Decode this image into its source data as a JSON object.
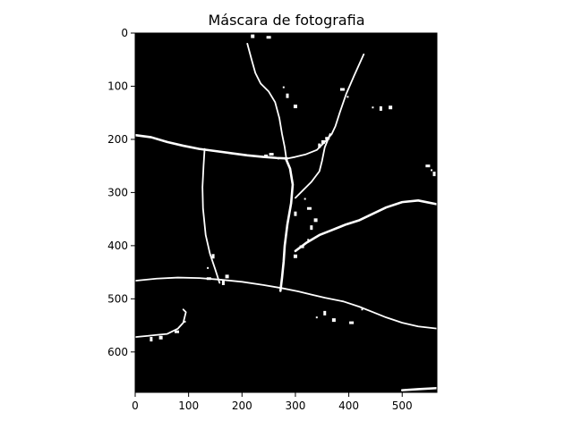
{
  "chart_data": {
    "type": "image",
    "title": "Máscara de fotografia",
    "xlabel": "",
    "ylabel": "",
    "xlim": [
      0,
      565
    ],
    "ylim": [
      676,
      0
    ],
    "xticks": [
      0,
      100,
      200,
      300,
      400,
      500
    ],
    "yticks": [
      0,
      100,
      200,
      300,
      400,
      500,
      600
    ],
    "grid": false,
    "legend": "none",
    "colormap": "gray",
    "background_color": "#000000",
    "foreground_color": "#ffffff",
    "white_features": [
      {
        "name": "crack-left-horizontal",
        "points": [
          [
            0,
            192
          ],
          [
            30,
            196
          ],
          [
            60,
            205
          ],
          [
            90,
            212
          ],
          [
            120,
            218
          ],
          [
            150,
            222
          ],
          [
            180,
            226
          ],
          [
            210,
            230
          ],
          [
            240,
            233
          ],
          [
            265,
            235
          ],
          [
            285,
            236
          ]
        ]
      },
      {
        "name": "crack-upper-vertical",
        "points": [
          [
            210,
            20
          ],
          [
            218,
            50
          ],
          [
            225,
            75
          ],
          [
            235,
            95
          ],
          [
            250,
            110
          ],
          [
            262,
            130
          ],
          [
            270,
            160
          ],
          [
            275,
            190
          ],
          [
            280,
            215
          ],
          [
            283,
            236
          ]
        ]
      },
      {
        "name": "crack-left-vertical",
        "points": [
          [
            130,
            218
          ],
          [
            128,
            250
          ],
          [
            126,
            290
          ],
          [
            127,
            330
          ],
          [
            132,
            380
          ],
          [
            140,
            415
          ],
          [
            150,
            445
          ],
          [
            158,
            470
          ]
        ]
      },
      {
        "name": "crack-center-vertical",
        "points": [
          [
            282,
            236
          ],
          [
            290,
            255
          ],
          [
            295,
            285
          ],
          [
            292,
            320
          ],
          [
            285,
            360
          ],
          [
            280,
            400
          ],
          [
            278,
            430
          ],
          [
            275,
            460
          ],
          [
            272,
            485
          ]
        ]
      },
      {
        "name": "crack-top-right",
        "points": [
          [
            428,
            40
          ],
          [
            410,
            80
          ],
          [
            395,
            115
          ],
          [
            383,
            150
          ],
          [
            375,
            175
          ],
          [
            368,
            190
          ],
          [
            355,
            205
          ],
          [
            340,
            220
          ],
          [
            320,
            228
          ],
          [
            300,
            233
          ],
          [
            285,
            236
          ]
        ]
      },
      {
        "name": "crack-branch-right",
        "points": [
          [
            365,
            190
          ],
          [
            355,
            215
          ],
          [
            350,
            240
          ],
          [
            345,
            260
          ],
          [
            330,
            280
          ],
          [
            315,
            295
          ],
          [
            300,
            310
          ]
        ]
      },
      {
        "name": "crack-right-diagonal",
        "points": [
          [
            300,
            410
          ],
          [
            320,
            395
          ],
          [
            345,
            380
          ],
          [
            370,
            370
          ],
          [
            395,
            360
          ],
          [
            420,
            352
          ],
          [
            445,
            340
          ],
          [
            470,
            328
          ],
          [
            500,
            318
          ],
          [
            530,
            315
          ],
          [
            565,
            322
          ]
        ]
      },
      {
        "name": "crack-bottom-long",
        "points": [
          [
            0,
            466
          ],
          [
            40,
            462
          ],
          [
            80,
            460
          ],
          [
            120,
            461
          ],
          [
            160,
            464
          ],
          [
            200,
            468
          ],
          [
            240,
            474
          ],
          [
            275,
            480
          ],
          [
            305,
            486
          ],
          [
            330,
            492
          ],
          [
            355,
            498
          ],
          [
            390,
            505
          ],
          [
            420,
            515
          ],
          [
            445,
            525
          ],
          [
            470,
            535
          ],
          [
            500,
            545
          ],
          [
            530,
            552
          ],
          [
            565,
            556
          ]
        ]
      },
      {
        "name": "crack-lower-left",
        "points": [
          [
            0,
            572
          ],
          [
            20,
            570
          ],
          [
            40,
            568
          ],
          [
            60,
            566
          ],
          [
            80,
            556
          ],
          [
            90,
            545
          ],
          [
            95,
            525
          ],
          [
            90,
            520
          ]
        ]
      },
      {
        "name": "crack-bottom-right",
        "points": [
          [
            500,
            672
          ],
          [
            530,
            670
          ],
          [
            565,
            668
          ]
        ]
      }
    ],
    "white_patches": [
      [
        445,
        140
      ],
      [
        460,
        142
      ],
      [
        478,
        140
      ],
      [
        548,
        250
      ],
      [
        555,
        258
      ],
      [
        560,
        265
      ],
      [
        245,
        232
      ],
      [
        255,
        228
      ],
      [
        268,
        236
      ],
      [
        345,
        212
      ],
      [
        352,
        205
      ],
      [
        360,
        198
      ],
      [
        340,
        535
      ],
      [
        355,
        527
      ],
      [
        372,
        540
      ],
      [
        405,
        545
      ],
      [
        425,
        520
      ],
      [
        30,
        576
      ],
      [
        48,
        573
      ],
      [
        78,
        562
      ],
      [
        93,
        543
      ],
      [
        165,
        470
      ],
      [
        172,
        458
      ],
      [
        138,
        462
      ],
      [
        136,
        442
      ],
      [
        146,
        420
      ],
      [
        300,
        420
      ],
      [
        312,
        402
      ],
      [
        324,
        389
      ],
      [
        330,
        366
      ],
      [
        338,
        352
      ],
      [
        326,
        330
      ],
      [
        318,
        312
      ],
      [
        300,
        340
      ],
      [
        220,
        6
      ],
      [
        250,
        8
      ],
      [
        278,
        102
      ],
      [
        285,
        118
      ],
      [
        300,
        138
      ],
      [
        388,
        106
      ],
      [
        398,
        120
      ]
    ]
  }
}
